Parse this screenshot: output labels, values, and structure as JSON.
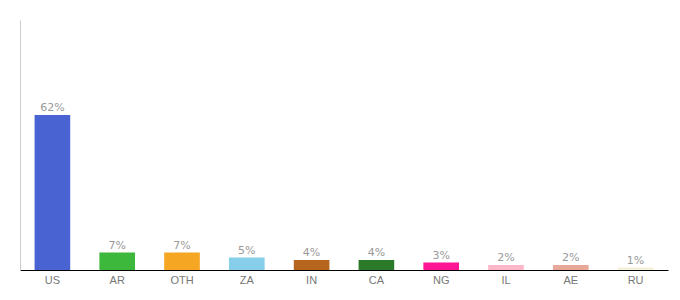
{
  "chart_data": {
    "type": "bar",
    "categories": [
      "US",
      "AR",
      "OTH",
      "ZA",
      "IN",
      "CA",
      "NG",
      "IL",
      "AE",
      "RU"
    ],
    "values": [
      62,
      7,
      7,
      5,
      4,
      4,
      3,
      2,
      2,
      1
    ],
    "value_labels": [
      "62%",
      "7%",
      "7%",
      "5%",
      "4%",
      "4%",
      "3%",
      "2%",
      "2%",
      "1%"
    ],
    "colors": [
      "#4a63d3",
      "#3db83d",
      "#f5a623",
      "#87ceeb",
      "#b5651d",
      "#2a7a2a",
      "#ff1493",
      "#ffb6c8",
      "#e8a898",
      "#f5f0d8"
    ],
    "ylim": [
      0,
      100
    ],
    "data_labels": true,
    "grid": false,
    "tick_labels": "x"
  }
}
